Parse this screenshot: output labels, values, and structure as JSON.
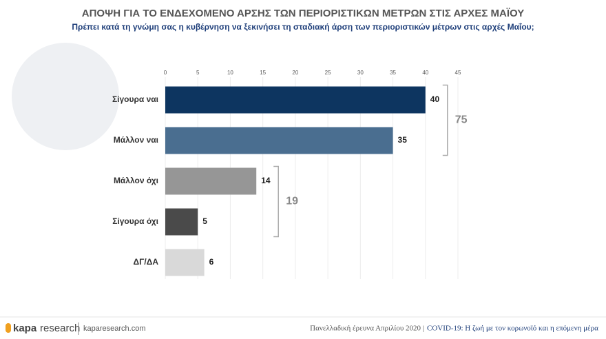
{
  "chart_data": {
    "type": "bar",
    "orientation": "horizontal",
    "title": "ΑΠΟΨΗ ΓΙΑ ΤΟ ΕΝΔΕΧΟΜΕΝΟ ΑΡΣΗΣ ΤΩΝ ΠΕΡΙΟΡΙΣΤΙΚΩΝ ΜΕΤΡΩΝ ΣΤΙΣ ΑΡΧΕΣ ΜΑΪΟΥ",
    "subtitle": "Πρέπει κατά τη γνώμη σας η κυβέρνηση να ξεκινήσει τη σταδιακή άρση των περιοριστικών μέτρων στις αρχές Μαΐου;",
    "categories": [
      "Σίγουρα ναι",
      "Μάλλον ναι",
      "Μάλλον όχι",
      "Σίγουρα όχι",
      "ΔΓ/ΔΑ"
    ],
    "values": [
      40,
      35,
      14,
      5,
      6
    ],
    "colors": [
      "#0d3560",
      "#4a6e90",
      "#969696",
      "#4a4a4a",
      "#d9d9d9"
    ],
    "xlim": [
      0,
      45
    ],
    "xticks": [
      0,
      5,
      10,
      15,
      20,
      25,
      30,
      35,
      40,
      45
    ],
    "grid": true,
    "group_totals": [
      75,
      19
    ]
  },
  "footer": {
    "logo_bold": "kapa",
    "logo_light": "research",
    "site": "kaparesearch.com",
    "survey": "Πανελλαδική έρευνα Απριλίου 2020 |",
    "project": "COVID-19: Η ζωή με τον κορωνοϊό και η επόμενη μέρα"
  }
}
